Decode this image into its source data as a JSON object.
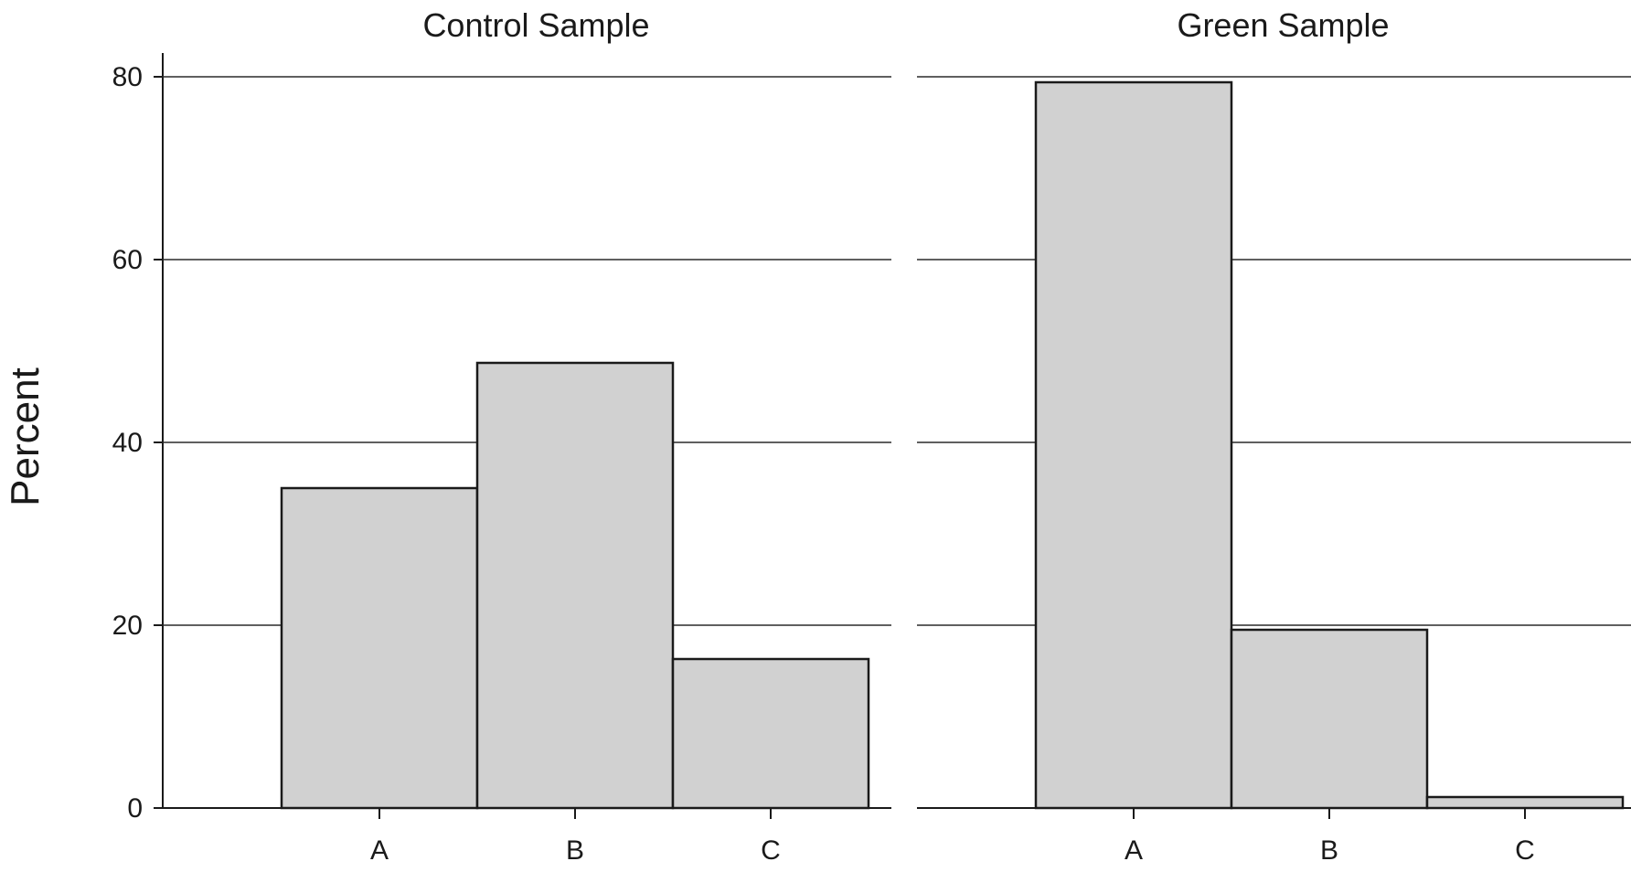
{
  "chart_data": {
    "type": "bar",
    "ylabel": "Percent",
    "ylim": [
      0,
      80
    ],
    "yticks": [
      0,
      20,
      40,
      60,
      80
    ],
    "grid": true,
    "bar_color": "#d1d1d1",
    "panels": [
      {
        "title": "Control Sample",
        "categories": [
          "A",
          "B",
          "C"
        ],
        "values": [
          35.0,
          48.7,
          16.3
        ]
      },
      {
        "title": "Green Sample",
        "categories": [
          "A",
          "B",
          "C"
        ],
        "values": [
          79.4,
          19.5,
          1.2
        ]
      }
    ]
  }
}
